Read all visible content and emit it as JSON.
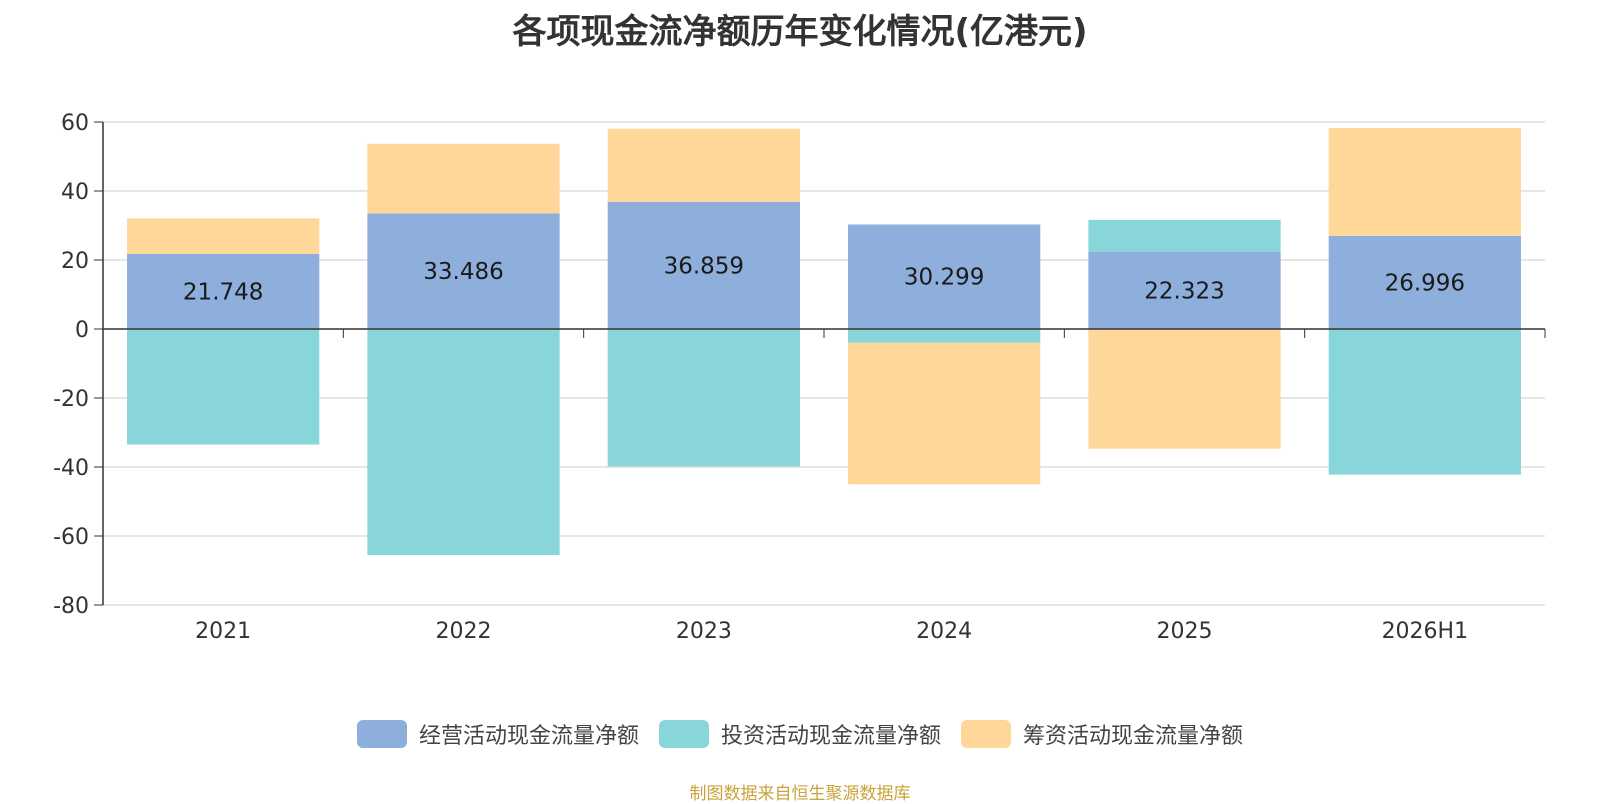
{
  "chart_data": {
    "type": "bar",
    "stacked": true,
    "title": "各项现金流净额历年变化情况(亿港元)",
    "categories": [
      "2021",
      "2022",
      "2023",
      "2024",
      "2025",
      "2026H1"
    ],
    "ylim": [
      -80,
      60
    ],
    "yticks": [
      60,
      40,
      20,
      0,
      -20,
      -40,
      -60,
      -80
    ],
    "grid": true,
    "legend_position": "bottom",
    "series": [
      {
        "name": "经营活动现金流量净额",
        "color": "#8eaedb",
        "values": [
          21.748,
          33.486,
          36.859,
          30.299,
          22.323,
          26.996
        ],
        "data_labels": [
          "21.748",
          "33.486",
          "36.859",
          "30.299",
          "22.323",
          "26.996"
        ]
      },
      {
        "name": "投资活动现金流量净额",
        "color": "#88d6d9",
        "values": [
          -33.5,
          -65.5,
          -39.8,
          -4.0,
          9.3,
          -42.2
        ]
      },
      {
        "name": "筹资活动现金流量净额",
        "color": "#ffd899",
        "values": [
          10.3,
          20.2,
          21.2,
          -41.0,
          -34.7,
          31.3
        ]
      }
    ]
  },
  "source_note": "制图数据来自恒生聚源数据库"
}
